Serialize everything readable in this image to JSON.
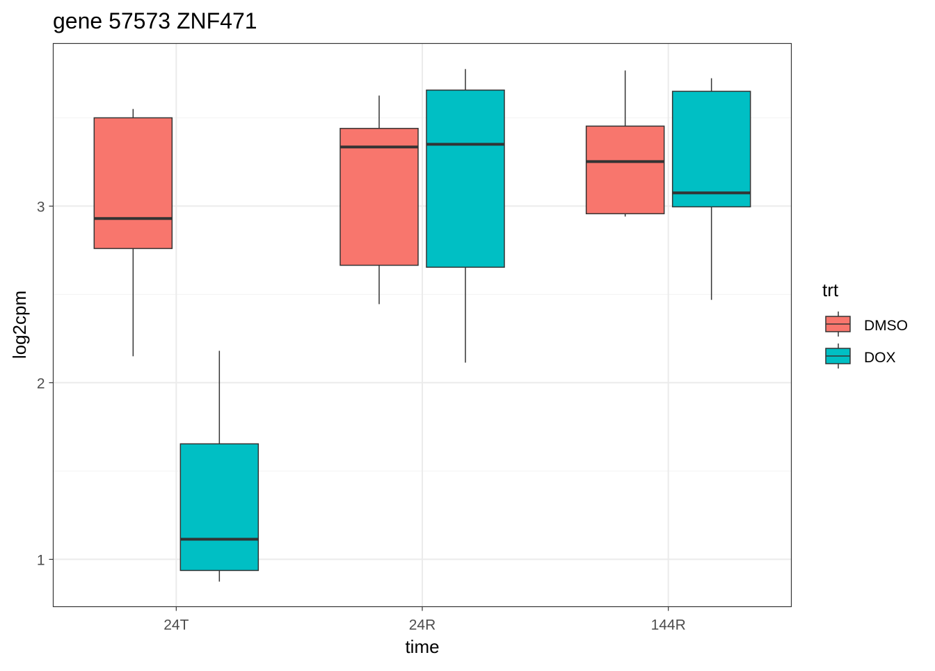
{
  "chart_data": {
    "type": "boxplot",
    "title": "gene 57573 ZNF471",
    "xlabel": "time",
    "ylabel": "log2cpm",
    "categories": [
      "24T",
      "24R",
      "144R"
    ],
    "ylim": [
      0.732,
      3.921
    ],
    "yticks": [
      1,
      2,
      3
    ],
    "ytick_labels": [
      "1",
      "2",
      "3"
    ],
    "grid": true,
    "legend": {
      "title": "trt",
      "placement": "right",
      "entries": [
        "DMSO",
        "DOX"
      ]
    },
    "series": [
      {
        "name": "DMSO",
        "color": "#F8766D",
        "boxes": [
          {
            "category": "24T",
            "min": 2.15,
            "q1": 2.76,
            "median": 2.93,
            "q3": 3.5,
            "max": 3.55
          },
          {
            "category": "24R",
            "min": 2.445,
            "q1": 2.665,
            "median": 3.335,
            "q3": 3.44,
            "max": 3.626
          },
          {
            "category": "144R",
            "min": 2.941,
            "q1": 2.957,
            "median": 3.252,
            "q3": 3.453,
            "max": 3.768
          }
        ]
      },
      {
        "name": "DOX",
        "color": "#00BFC4",
        "boxes": [
          {
            "category": "24T",
            "min": 0.874,
            "q1": 0.937,
            "median": 1.114,
            "q3": 1.654,
            "max": 2.181
          },
          {
            "category": "24R",
            "min": 2.114,
            "q1": 2.654,
            "median": 3.35,
            "q3": 3.657,
            "max": 3.776
          },
          {
            "category": "144R",
            "min": 2.469,
            "q1": 2.996,
            "median": 3.075,
            "q3": 3.65,
            "max": 3.724
          }
        ]
      }
    ]
  }
}
